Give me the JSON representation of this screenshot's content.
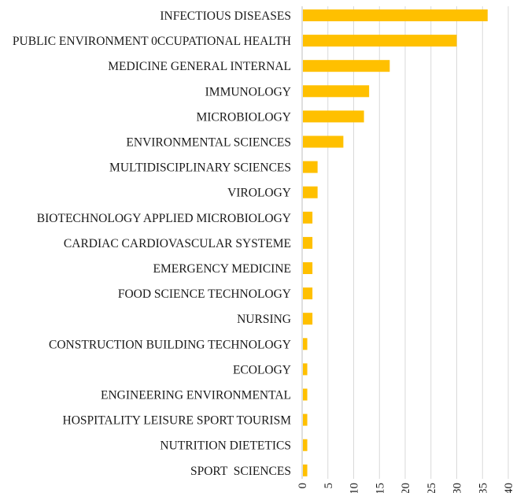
{
  "chart_data": {
    "type": "bar",
    "orientation": "horizontal",
    "title": "",
    "xlabel": "",
    "ylabel": "",
    "categories": [
      "INFECTIOUS DISEASES",
      "PUBLIC ENVIRONMENT 0CCUPATIONAL HEALTH",
      "MEDICINE GENERAL INTERNAL",
      "IMMUNOLOGY",
      "MICROBIOLOGY",
      "ENVIRONMENTAL SCIENCES",
      "MULTIDISCIPLINARY SCIENCES",
      "VIROLOGY",
      "BIOTECHNOLOGY APPLIED MICROBIOLOGY",
      "CARDIAC CARDIOVASCULAR SYSTEME",
      "EMERGENCY MEDICINE",
      "FOOD SCIENCE TECHNOLOGY",
      "NURSING",
      "CONSTRUCTION BUILDING TECHNOLOGY",
      "ECOLOGY",
      "ENGINEERING ENVIRONMENTAL",
      "HOSPITALITY LEISURE SPORT TOURISM",
      "NUTRITION DIETETICS",
      "SPORT  SCIENCES"
    ],
    "values": [
      36,
      30,
      17,
      13,
      12,
      8,
      3,
      3,
      2,
      2,
      2,
      2,
      2,
      1,
      1,
      1,
      1,
      1,
      1
    ],
    "xlim": [
      0,
      40
    ],
    "xticks": [
      "0",
      "5",
      "10",
      "15",
      "20",
      "25",
      "30",
      "35",
      "40"
    ],
    "grid": true,
    "legend": "none",
    "colors": {
      "bar": "#FFC000"
    }
  }
}
